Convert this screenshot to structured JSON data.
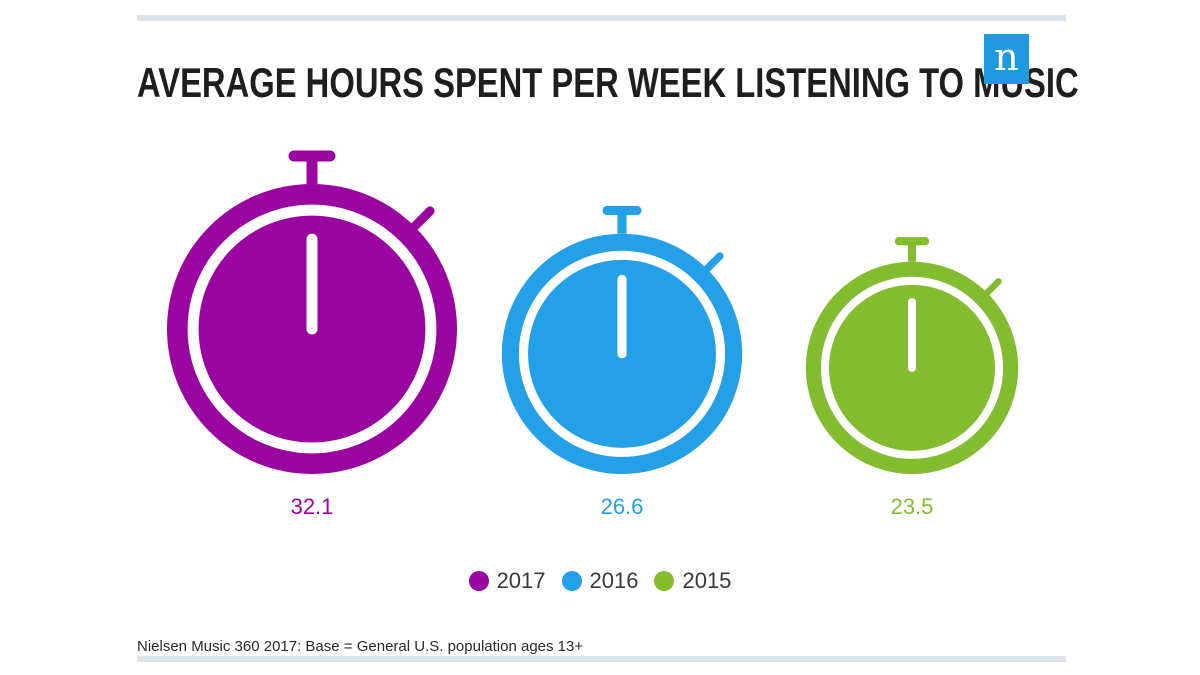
{
  "header": {
    "logo_text": "n"
  },
  "chart_data": {
    "type": "stopwatch-pictogram",
    "title": "AVERAGE HOURS SPENT PER WEEK LISTENING TO MUSIC",
    "categories": [
      "2017",
      "2016",
      "2015"
    ],
    "values": [
      32.1,
      26.6,
      23.5
    ],
    "value_labels": [
      "32.1",
      "26.6",
      "23.5"
    ],
    "colors": [
      "#9a05a2",
      "#23a0e8",
      "#83bc2f"
    ],
    "legend": [
      {
        "label": "2017",
        "color": "#9a05a2"
      },
      {
        "label": "2016",
        "color": "#23a0e8"
      },
      {
        "label": "2015",
        "color": "#83bc2f"
      }
    ],
    "legend_position": "bottom-center",
    "source": "Nielsen Music 360 2017: Base = General U.S. population ages 13+"
  },
  "colors": {
    "rule": "#dde3ea",
    "title": "#1e1e1e",
    "logo_bg": "#1f9ae0"
  }
}
